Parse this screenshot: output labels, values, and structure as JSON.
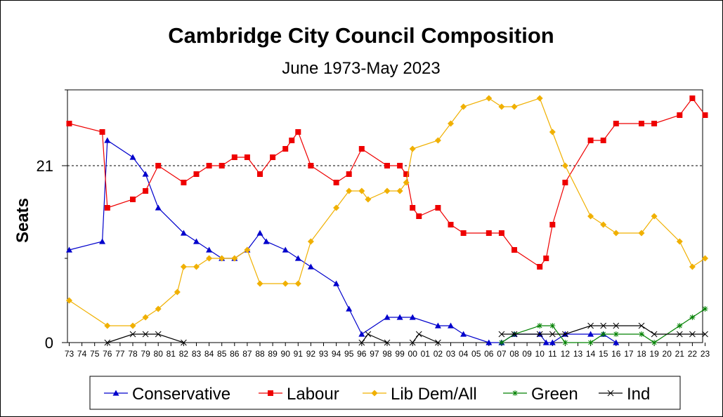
{
  "chart_data": {
    "type": "line",
    "title": "Cambridge City Council Composition",
    "subtitle": "June 1973-May 2023",
    "xlabel": "",
    "ylabel": "Seats",
    "ylim": [
      0,
      30
    ],
    "xlim": [
      1973,
      2023
    ],
    "y_ticks": [
      {
        "value": 0,
        "label": "0"
      },
      {
        "value": 21,
        "label": "21"
      }
    ],
    "y_minor_ticks": [
      10,
      30
    ],
    "majority_line": 21,
    "x_categories": [
      "73",
      "74",
      "75",
      "76",
      "77",
      "78",
      "79",
      "80",
      "81",
      "82",
      "83",
      "84",
      "85",
      "86",
      "87",
      "88",
      "89",
      "90",
      "91",
      "92",
      "93",
      "94",
      "95",
      "96",
      "97",
      "98",
      "99",
      "00",
      "01",
      "02",
      "03",
      "04",
      "05",
      "06",
      "07",
      "08",
      "09",
      "10",
      "11",
      "12",
      "13",
      "14",
      "15",
      "16",
      "17",
      "18",
      "19",
      "20",
      "21",
      "22",
      "23"
    ],
    "series": [
      {
        "name": "Conservative",
        "color": "#0000cc",
        "marker": "triangle",
        "points": [
          [
            1973,
            11
          ],
          [
            1975.6,
            12
          ],
          [
            1976,
            24
          ],
          [
            1978,
            22
          ],
          [
            1979,
            20
          ],
          [
            1980,
            16
          ],
          [
            1982,
            13
          ],
          [
            1983,
            12
          ],
          [
            1984,
            11
          ],
          [
            1985,
            10
          ],
          [
            1986,
            10
          ],
          [
            1987,
            11
          ],
          [
            1988,
            13
          ],
          [
            1988.5,
            12
          ],
          [
            1990,
            11
          ],
          [
            1991,
            10
          ],
          [
            1992,
            9
          ],
          [
            1994,
            7
          ],
          [
            1995,
            4
          ],
          [
            1996,
            1
          ],
          [
            1998,
            3
          ],
          [
            1999,
            3
          ],
          [
            2000,
            3
          ],
          [
            2002,
            2
          ],
          [
            2003,
            2
          ],
          [
            2004,
            1
          ],
          [
            2006,
            0
          ],
          [
            2007,
            0
          ],
          [
            2008,
            1
          ],
          [
            2010,
            1
          ],
          [
            2010.5,
            0
          ],
          [
            2011,
            0
          ],
          [
            2012,
            1
          ],
          [
            2014,
            1
          ],
          [
            2015,
            1
          ],
          [
            2016,
            0
          ]
        ]
      },
      {
        "name": "Labour",
        "color": "#ee0000",
        "marker": "square",
        "points": [
          [
            1973,
            26
          ],
          [
            1975.6,
            25
          ],
          [
            1976,
            16
          ],
          [
            1978,
            17
          ],
          [
            1979,
            18
          ],
          [
            1980,
            21
          ],
          [
            1982,
            19
          ],
          [
            1983,
            20
          ],
          [
            1984,
            21
          ],
          [
            1985,
            21
          ],
          [
            1986,
            22
          ],
          [
            1987,
            22
          ],
          [
            1988,
            20
          ],
          [
            1989,
            22
          ],
          [
            1990,
            23
          ],
          [
            1990.5,
            24
          ],
          [
            1991,
            25
          ],
          [
            1992,
            21
          ],
          [
            1994,
            19
          ],
          [
            1995,
            20
          ],
          [
            1996,
            23
          ],
          [
            1998,
            21
          ],
          [
            1999,
            21
          ],
          [
            1999.5,
            20
          ],
          [
            2000,
            16
          ],
          [
            2000.5,
            15
          ],
          [
            2002,
            16
          ],
          [
            2003,
            14
          ],
          [
            2004,
            13
          ],
          [
            2006,
            13
          ],
          [
            2007,
            13
          ],
          [
            2008,
            11
          ],
          [
            2010,
            9
          ],
          [
            2010.5,
            10
          ],
          [
            2011,
            14
          ],
          [
            2012,
            19
          ],
          [
            2014,
            24
          ],
          [
            2015,
            24
          ],
          [
            2016,
            26
          ],
          [
            2018,
            26
          ],
          [
            2019,
            26
          ],
          [
            2021,
            27
          ],
          [
            2022,
            29
          ],
          [
            2023,
            27
          ]
        ]
      },
      {
        "name": "Lib Dem/All",
        "color": "#f0b000",
        "marker": "diamond",
        "points": [
          [
            1973,
            5
          ],
          [
            1976,
            2
          ],
          [
            1978,
            2
          ],
          [
            1979,
            3
          ],
          [
            1980,
            4
          ],
          [
            1981.5,
            6
          ],
          [
            1982,
            9
          ],
          [
            1983,
            9
          ],
          [
            1984,
            10
          ],
          [
            1985,
            10
          ],
          [
            1986,
            10
          ],
          [
            1987,
            11
          ],
          [
            1988,
            7
          ],
          [
            1990,
            7
          ],
          [
            1991,
            7
          ],
          [
            1992,
            12
          ],
          [
            1994,
            16
          ],
          [
            1995,
            18
          ],
          [
            1996,
            18
          ],
          [
            1996.5,
            17
          ],
          [
            1998,
            18
          ],
          [
            1999,
            18
          ],
          [
            1999.5,
            19
          ],
          [
            2000,
            23
          ],
          [
            2002,
            24
          ],
          [
            2003,
            26
          ],
          [
            2004,
            28
          ],
          [
            2006,
            29
          ],
          [
            2007,
            28
          ],
          [
            2008,
            28
          ],
          [
            2010,
            29
          ],
          [
            2011,
            25
          ],
          [
            2012,
            21
          ],
          [
            2014,
            15
          ],
          [
            2015,
            14
          ],
          [
            2016,
            13
          ],
          [
            2018,
            13
          ],
          [
            2019,
            15
          ],
          [
            2021,
            12
          ],
          [
            2022,
            9
          ],
          [
            2023,
            10
          ]
        ]
      },
      {
        "name": "Green",
        "color": "#008000",
        "marker": "star",
        "points": [
          [
            2007,
            0
          ],
          [
            2008,
            1
          ],
          [
            2010,
            2
          ],
          [
            2011,
            2
          ],
          [
            2012,
            0
          ],
          [
            2014,
            0
          ],
          [
            2015,
            1
          ],
          [
            2016,
            1
          ],
          [
            2018,
            1
          ],
          [
            2019,
            0
          ],
          [
            2021,
            2
          ],
          [
            2022,
            3
          ],
          [
            2023,
            4
          ]
        ]
      },
      {
        "name": "Ind",
        "color": "#000000",
        "marker": "x",
        "segments": [
          [
            [
              1976,
              0
            ],
            [
              1978,
              1
            ],
            [
              1979,
              1
            ],
            [
              1980,
              1
            ],
            [
              1982,
              0
            ]
          ],
          [
            [
              1996,
              0
            ],
            [
              1996.5,
              1
            ],
            [
              1998,
              0
            ]
          ],
          [
            [
              2000,
              0
            ],
            [
              2000.5,
              1
            ],
            [
              2002,
              0
            ]
          ],
          [
            [
              2007,
              1
            ],
            [
              2008,
              1
            ],
            [
              2010,
              1
            ],
            [
              2011,
              1
            ],
            [
              2012,
              1
            ],
            [
              2014,
              2
            ],
            [
              2015,
              2
            ],
            [
              2016,
              2
            ],
            [
              2018,
              2
            ],
            [
              2019,
              1
            ],
            [
              2021,
              1
            ],
            [
              2022,
              1
            ],
            [
              2023,
              1
            ]
          ]
        ]
      }
    ],
    "legend": {
      "placement": "bottom-center",
      "entries": [
        "Conservative",
        "Labour",
        "Lib Dem/All",
        "Green",
        "Ind"
      ]
    }
  }
}
